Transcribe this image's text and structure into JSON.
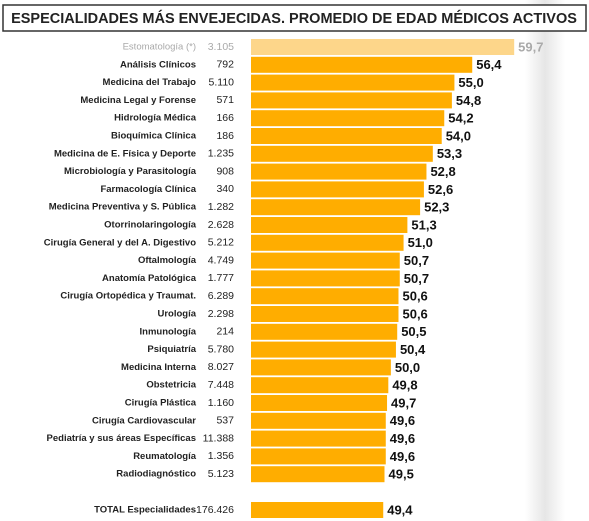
{
  "chart_data": {
    "type": "bar",
    "orientation": "horizontal",
    "title": "ESPECIALIDADES MÁS ENVEJECIDAS. PROMEDIO DE EDAD MÉDICOS ACTIVOS",
    "categories": [
      "Estomatología (*)",
      "Análisis Clínicos",
      "Medicina del Trabajo",
      "Medicina Legal y Forense",
      "Hidrología Médica",
      "Bioquímica Clínica",
      "Medicina de E. Física y Deporte",
      "Microbiología y Parasitología",
      "Farmacología Clínica",
      "Medicina Preventiva y S. Pública",
      "Otorrinolaringología",
      "Cirugía General y del A. Digestivo",
      "Oftalmología",
      "Anatomía Patológica",
      "Cirugía Ortopédica y Traumat.",
      "Urología",
      "Inmunología",
      "Psiquiatría",
      "Medicina Interna",
      "Obstetricia",
      "Cirugía Plástica",
      "Cirugía Cardiovascular",
      "Pediatría y sus áreas Específicas",
      "Reumatología",
      "Radiodiagnóstico"
    ],
    "counts": [
      3105,
      792,
      5110,
      571,
      166,
      186,
      1235,
      908,
      340,
      1282,
      2628,
      5212,
      4749,
      1777,
      6289,
      2298,
      214,
      5780,
      8027,
      7448,
      1160,
      537,
      11388,
      1356,
      5123
    ],
    "count_labels": [
      "3.105",
      "792",
      "5.110",
      "571",
      "166",
      "186",
      "1.235",
      "908",
      "340",
      "1.282",
      "2.628",
      "5.212",
      "4.749",
      "1.777",
      "6.289",
      "2.298",
      "214",
      "5.780",
      "8.027",
      "7.448",
      "1.160",
      "537",
      "11.388",
      "1.356",
      "5.123"
    ],
    "values": [
      59.7,
      56.4,
      55.0,
      54.8,
      54.2,
      54.0,
      53.3,
      52.8,
      52.6,
      52.3,
      51.3,
      51.0,
      50.7,
      50.7,
      50.6,
      50.6,
      50.5,
      50.4,
      50.0,
      49.8,
      49.7,
      49.6,
      49.6,
      49.6,
      49.5
    ],
    "value_labels": [
      "59,7",
      "56,4",
      "55,0",
      "54,8",
      "54,2",
      "54,0",
      "53,3",
      "52,8",
      "52,6",
      "52,3",
      "51,3",
      "51,0",
      "50,7",
      "50,7",
      "50,6",
      "50,6",
      "50,5",
      "50,4",
      "50,0",
      "49,8",
      "49,7",
      "49,6",
      "49,6",
      "49,6",
      "49,5"
    ],
    "colors": [
      "#FDD68A",
      "#FFAD00",
      "#FFAD00",
      "#FFAD00",
      "#FFAD00",
      "#FFAD00",
      "#FFAD00",
      "#FFAD00",
      "#FFAD00",
      "#FFAD00",
      "#FFAD00",
      "#FFAD00",
      "#FFAD00",
      "#FFAD00",
      "#FFAD00",
      "#FFAD00",
      "#FFAD00",
      "#FFAD00",
      "#FFAD00",
      "#FFAD00",
      "#FFAD00",
      "#FFAD00",
      "#FFAD00",
      "#FFAD00",
      "#FFAD00"
    ],
    "total": {
      "name": "TOTAL Especialidades",
      "count": 176426,
      "count_label": "176.426",
      "value": 49.4,
      "value_label": "49,4",
      "color": "#FFAD00"
    },
    "xlim": [
      39,
      60
    ]
  }
}
